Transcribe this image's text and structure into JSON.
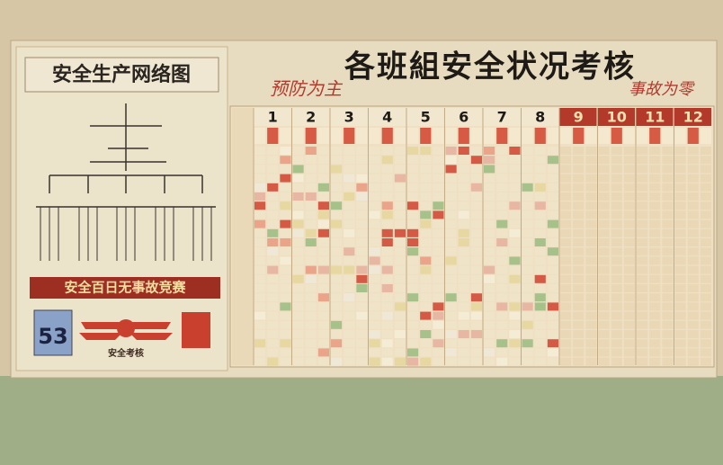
{
  "left_panel": {
    "title": "安全生产网络图",
    "banner": "安全百日无事故竞赛",
    "counter": 53,
    "emblem_text": "安全考核"
  },
  "board": {
    "title": "各班組安全状况考核",
    "slogan_left": "预防为主",
    "slogan_right": "事故为零",
    "months": [
      1,
      2,
      3,
      4,
      5,
      6,
      7,
      8,
      9,
      10,
      11,
      12
    ]
  }
}
